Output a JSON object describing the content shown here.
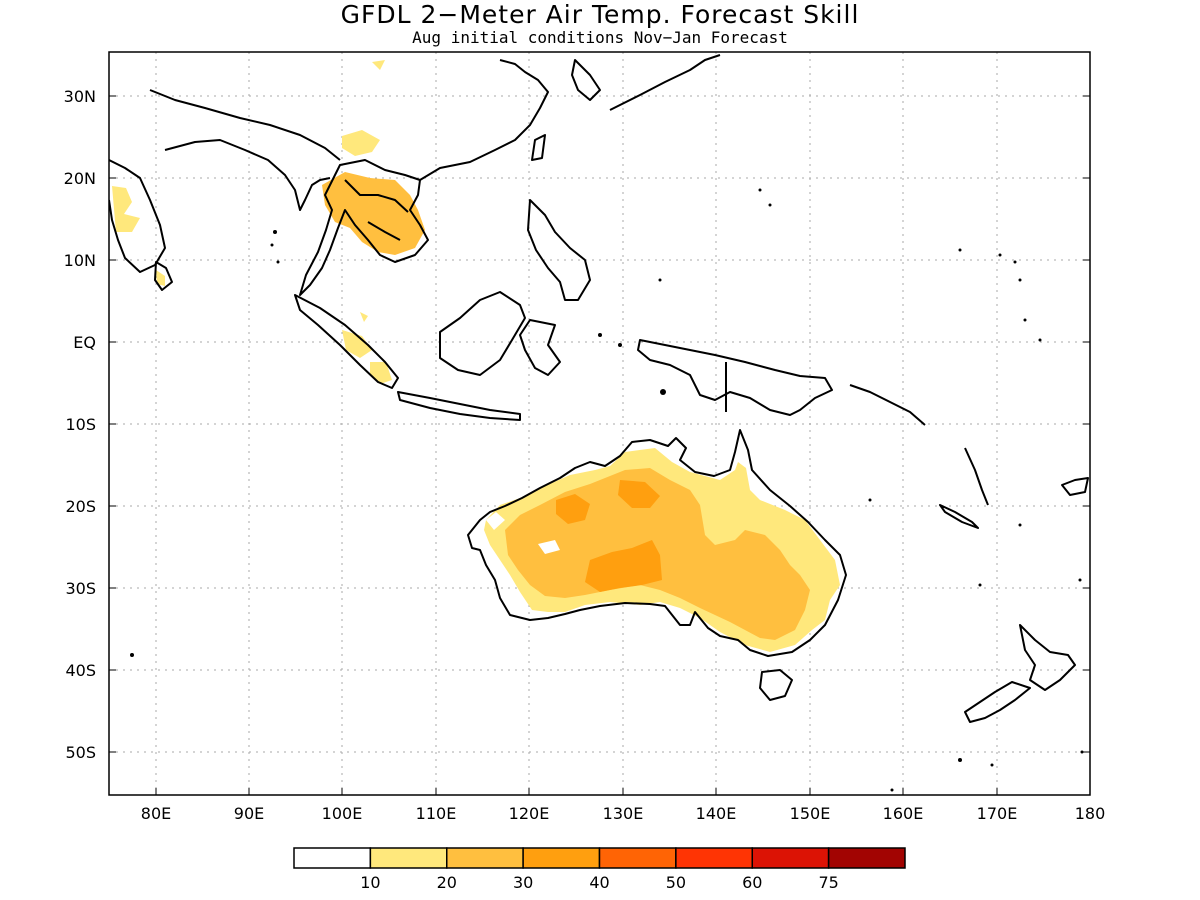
{
  "title": "GFDL 2−Meter Air Temp. Forecast Skill",
  "subtitle": "Aug initial conditions  Nov−Jan Forecast",
  "lat_labels": [
    "30N",
    "20N",
    "10N",
    "EQ",
    "10S",
    "20S",
    "30S",
    "40S",
    "50S"
  ],
  "lon_labels": [
    "80E",
    "90E",
    "100E",
    "110E",
    "120E",
    "130E",
    "140E",
    "150E",
    "160E",
    "170E",
    "180"
  ],
  "colorbar": {
    "colors": [
      "#ffffff",
      "#ffe87c",
      "#ffbf3f",
      "#ff9f0f",
      "#ff6405",
      "#ff3404",
      "#dc1305",
      "#a20402"
    ],
    "labels": [
      "10",
      "20",
      "30",
      "40",
      "50",
      "60",
      "75"
    ]
  },
  "map_extent": {
    "lon": [
      75,
      180
    ],
    "lat": [
      -55,
      35
    ]
  }
}
